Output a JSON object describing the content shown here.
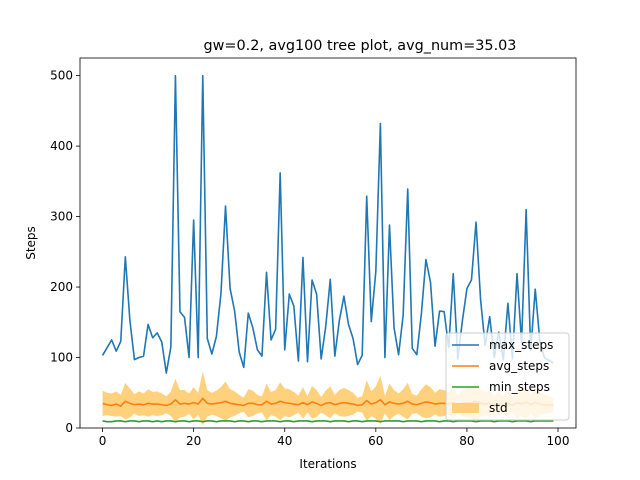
{
  "chart_data": {
    "type": "line",
    "title": "gw=0.2, avg100 tree plot, avg_num=35.03",
    "xlabel": "Iterations",
    "ylabel": "Steps",
    "xlim": [
      -4.95,
      103.95
    ],
    "ylim": [
      0,
      525
    ],
    "xticks": [
      0,
      20,
      40,
      60,
      80,
      100
    ],
    "yticks": [
      0,
      100,
      200,
      300,
      400,
      500
    ],
    "x": [
      0,
      1,
      2,
      3,
      4,
      5,
      6,
      7,
      8,
      9,
      10,
      11,
      12,
      13,
      14,
      15,
      16,
      17,
      18,
      19,
      20,
      21,
      22,
      23,
      24,
      25,
      26,
      27,
      28,
      29,
      30,
      31,
      32,
      33,
      34,
      35,
      36,
      37,
      38,
      39,
      40,
      41,
      42,
      43,
      44,
      45,
      46,
      47,
      48,
      49,
      50,
      51,
      52,
      53,
      54,
      55,
      56,
      57,
      58,
      59,
      60,
      61,
      62,
      63,
      64,
      65,
      66,
      67,
      68,
      69,
      70,
      71,
      72,
      73,
      74,
      75,
      76,
      77,
      78,
      79,
      80,
      81,
      82,
      83,
      84,
      85,
      86,
      87,
      88,
      89,
      90,
      91,
      92,
      93,
      94,
      95,
      96,
      97,
      98,
      99
    ],
    "legend_position": "lower right",
    "series": [
      {
        "name": "max_steps",
        "color": "#1f77b4",
        "values": [
          103,
          114,
          125,
          109,
          123,
          243,
          153,
          97,
          100,
          102,
          147,
          128,
          135,
          122,
          78,
          115,
          500,
          165,
          157,
          100,
          295,
          100,
          500,
          127,
          105,
          130,
          191,
          315,
          198,
          166,
          108,
          86,
          163,
          142,
          111,
          102,
          221,
          125,
          140,
          362,
          111,
          190,
          173,
          95,
          242,
          94,
          210,
          190,
          98,
          144,
          211,
          102,
          153,
          187,
          147,
          127,
          90,
          103,
          329,
          151,
          222,
          432,
          100,
          288,
          142,
          104,
          160,
          339,
          113,
          104,
          162,
          239,
          207,
          116,
          166,
          165,
          114,
          219,
          98,
          152,
          198,
          210,
          292,
          182,
          117,
          158,
          100,
          136,
          97,
          177,
          98,
          219,
          121,
          310,
          110,
          197,
          124,
          100,
          96,
          92
        ]
      },
      {
        "name": "avg_steps",
        "color": "#ff7f0e",
        "values": [
          35,
          33,
          32,
          34,
          31,
          38,
          35,
          33,
          34,
          33,
          35,
          34,
          34,
          33,
          32,
          34,
          40,
          34,
          35,
          34,
          36,
          34,
          42,
          35,
          34,
          35,
          36,
          38,
          35,
          34,
          33,
          32,
          35,
          35,
          33,
          33,
          38,
          34,
          35,
          38,
          36,
          35,
          34,
          33,
          36,
          33,
          37,
          35,
          32,
          35,
          36,
          33,
          35,
          36,
          35,
          34,
          32,
          33,
          39,
          34,
          36,
          40,
          33,
          37,
          35,
          34,
          35,
          38,
          34,
          33,
          35,
          37,
          36,
          34,
          35,
          35,
          34,
          36,
          33,
          35,
          36,
          36,
          38,
          35,
          34,
          35,
          33,
          34,
          33,
          35,
          32,
          36,
          34,
          37,
          33,
          36,
          34,
          33,
          33,
          32
        ]
      },
      {
        "name": "min_steps",
        "color": "#2ca02c",
        "values": [
          10,
          9,
          9,
          10,
          10,
          9,
          10,
          10,
          9,
          10,
          10,
          9,
          10,
          9,
          10,
          10,
          9,
          10,
          10,
          9,
          10,
          10,
          9,
          10,
          10,
          9,
          10,
          10,
          10,
          9,
          10,
          10,
          9,
          10,
          10,
          9,
          10,
          10,
          10,
          9,
          10,
          10,
          9,
          10,
          10,
          10,
          9,
          10,
          10,
          10,
          9,
          10,
          10,
          10,
          9,
          10,
          10,
          9,
          10,
          10,
          10,
          9,
          10,
          10,
          10,
          10,
          9,
          10,
          10,
          10,
          9,
          10,
          10,
          10,
          9,
          10,
          10,
          9,
          10,
          10,
          10,
          10,
          9,
          10,
          10,
          10,
          9,
          10,
          10,
          10,
          9,
          10,
          10,
          10,
          9,
          10,
          10,
          10,
          10,
          10
        ]
      },
      {
        "name": "std",
        "color": "#ffc966",
        "type": "band",
        "lower": [
          17,
          18,
          17,
          16,
          17,
          12,
          15,
          20,
          17,
          18,
          16,
          18,
          17,
          18,
          21,
          17,
          8,
          15,
          16,
          20,
          12,
          19,
          4,
          16,
          19,
          17,
          14,
          10,
          15,
          17,
          21,
          23,
          15,
          17,
          21,
          22,
          11,
          18,
          16,
          11,
          17,
          15,
          18,
          22,
          13,
          22,
          13,
          16,
          22,
          18,
          14,
          21,
          17,
          16,
          17,
          19,
          23,
          22,
          10,
          17,
          13,
          6,
          21,
          11,
          17,
          20,
          16,
          12,
          20,
          21,
          16,
          14,
          15,
          19,
          16,
          17,
          19,
          14,
          21,
          17,
          15,
          14,
          11,
          16,
          18,
          17,
          21,
          18,
          21,
          16,
          23,
          13,
          18,
          13,
          20,
          14,
          18,
          20,
          21,
          22
        ],
        "upper": [
          53,
          50,
          49,
          52,
          47,
          64,
          56,
          48,
          52,
          49,
          55,
          51,
          52,
          49,
          45,
          52,
          70,
          54,
          54,
          49,
          58,
          50,
          80,
          54,
          50,
          53,
          58,
          66,
          55,
          52,
          47,
          43,
          55,
          53,
          47,
          45,
          63,
          51,
          54,
          65,
          56,
          55,
          51,
          46,
          58,
          45,
          60,
          54,
          44,
          53,
          59,
          47,
          54,
          57,
          54,
          50,
          43,
          45,
          68,
          52,
          59,
          74,
          46,
          63,
          54,
          49,
          55,
          64,
          48,
          46,
          55,
          62,
          58,
          50,
          55,
          54,
          50,
          58,
          46,
          54,
          57,
          58,
          65,
          55,
          51,
          54,
          46,
          51,
          46,
          55,
          42,
          59,
          50,
          61,
          47,
          58,
          51,
          47,
          46,
          43
        ]
      }
    ]
  }
}
